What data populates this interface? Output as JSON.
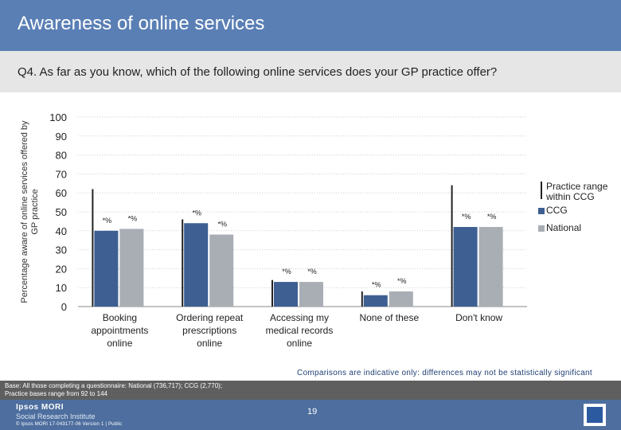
{
  "header": {
    "title": "Awareness of online services",
    "question": "Q4. As far as you know, which of the following online services does your GP practice offer?"
  },
  "chart_data": {
    "type": "bar",
    "ylabel": "Percentage aware of online services offered by GP practice",
    "ylim": [
      0,
      100
    ],
    "yticks": [
      0,
      10,
      20,
      30,
      40,
      50,
      60,
      70,
      80,
      90,
      100
    ],
    "grid": true,
    "categories": [
      [
        "Booking",
        "appointments",
        "online"
      ],
      [
        "Ordering repeat",
        "prescriptions",
        "online"
      ],
      [
        "Accessing my",
        "medical records",
        "online"
      ],
      [
        "None of these"
      ],
      [
        "Don't know"
      ]
    ],
    "series": [
      {
        "name": "CCG",
        "color": "#3d5f92",
        "values": [
          40,
          44,
          13,
          6,
          42
        ],
        "labels": [
          "*%",
          "*%",
          "*%",
          "*%",
          "*%"
        ]
      },
      {
        "name": "National",
        "color": "#a9aeb5",
        "values": [
          41,
          38,
          13,
          8,
          42
        ],
        "labels": [
          "*%",
          "*%",
          "*%",
          "*%",
          "*%"
        ]
      }
    ],
    "range": {
      "name": "Practice range within CCG",
      "low": [
        0,
        0,
        0,
        0,
        0
      ],
      "high": [
        62,
        46,
        14,
        8,
        64
      ]
    },
    "legend_position": "right"
  },
  "notes": {
    "comparison": "Comparisons are indicative only: differences may not be statistically significant",
    "base_line1": "Base: All those completing a questionnaire: National (736,717); CCG (2,770);",
    "base_line2": "Practice bases range from 92 to 144"
  },
  "footer": {
    "logo_line1": "Ipsos MORI",
    "logo_line2": "Social Research Institute",
    "copyright": "© Ipsos MORI      17-043177-06 Version 1 | Public",
    "page_number": "19"
  }
}
